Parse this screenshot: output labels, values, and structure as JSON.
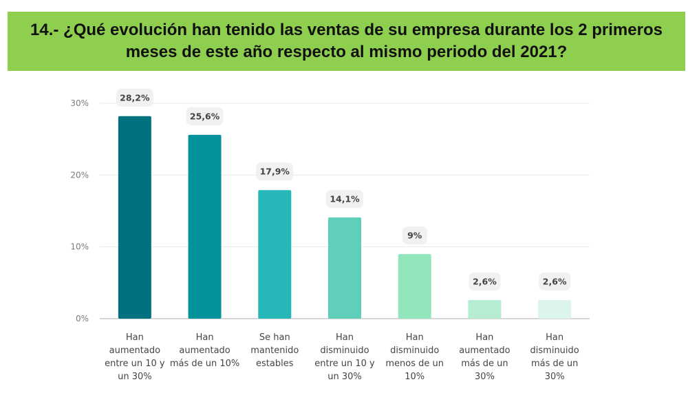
{
  "header": {
    "title": "14.- ¿Qué evolución han tenido las ventas de su empresa durante los 2 primeros meses de este año respecto al mismo periodo del 2021?"
  },
  "chart_data": {
    "type": "bar",
    "categories": [
      [
        "Han",
        "aumentado",
        "entre un 10 y",
        "un 30%"
      ],
      [
        "Han",
        "aumentado",
        "más de un 10%"
      ],
      [
        "Se han",
        "mantenido",
        "estables"
      ],
      [
        "Han",
        "disminuido",
        "entre un 10 y",
        "un 30%"
      ],
      [
        "Han",
        "disminuido",
        "menos de un",
        "10%"
      ],
      [
        "Han",
        "aumentado",
        "más de un",
        "30%"
      ],
      [
        "Han",
        "disminuido",
        "más de un",
        "30%"
      ]
    ],
    "values": [
      28.2,
      25.6,
      17.9,
      14.1,
      9,
      2.6,
      2.6
    ],
    "data_labels": [
      "28,2%",
      "25,6%",
      "17,9%",
      "14,1%",
      "9%",
      "2,6%",
      "2,6%"
    ],
    "colors": [
      "#00717f",
      "#05939b",
      "#26b8b9",
      "#5fcfb9",
      "#92e6bc",
      "#b5ecd2",
      "#dcf4ec"
    ],
    "y_ticks": [
      0,
      10,
      20,
      30
    ],
    "y_tick_labels": [
      "0%",
      "10%",
      "20%",
      "30%"
    ],
    "ylim": [
      0,
      30
    ],
    "grid": true,
    "legend": "none"
  }
}
